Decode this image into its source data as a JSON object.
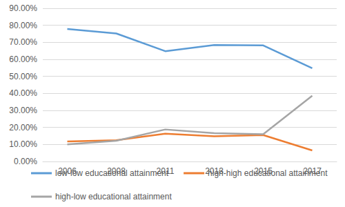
{
  "chart_data": {
    "type": "line",
    "categories": [
      "2006",
      "2008",
      "2011",
      "2013",
      "2015",
      "2017"
    ],
    "series": [
      {
        "name": "low-low educational attainment",
        "color": "#5b9bd5",
        "values": [
          77.8,
          75.2,
          64.8,
          68.4,
          68.2,
          54.8
        ]
      },
      {
        "name": "high-high educational attainment",
        "color": "#ed7d31",
        "values": [
          11.8,
          12.5,
          16.3,
          14.8,
          15.5,
          6.5
        ]
      },
      {
        "name": "high-low educational attainment",
        "color": "#a5a5a5",
        "values": [
          10.0,
          12.2,
          18.8,
          16.6,
          16.0,
          38.6
        ]
      }
    ],
    "ylim": [
      0,
      90
    ],
    "yticks": [
      {
        "value": 0,
        "label": "0.00%"
      },
      {
        "value": 10,
        "label": "10.00%"
      },
      {
        "value": 20,
        "label": "20.00%"
      },
      {
        "value": 30,
        "label": "30.00%"
      },
      {
        "value": 40,
        "label": "40.00%"
      },
      {
        "value": 50,
        "label": "50.00%"
      },
      {
        "value": 60,
        "label": "60.00%"
      },
      {
        "value": 70,
        "label": "70.00%"
      },
      {
        "value": 80,
        "label": "80.00%"
      },
      {
        "value": 90,
        "label": "90.00%"
      }
    ],
    "grid": true,
    "legend": "bottom"
  }
}
